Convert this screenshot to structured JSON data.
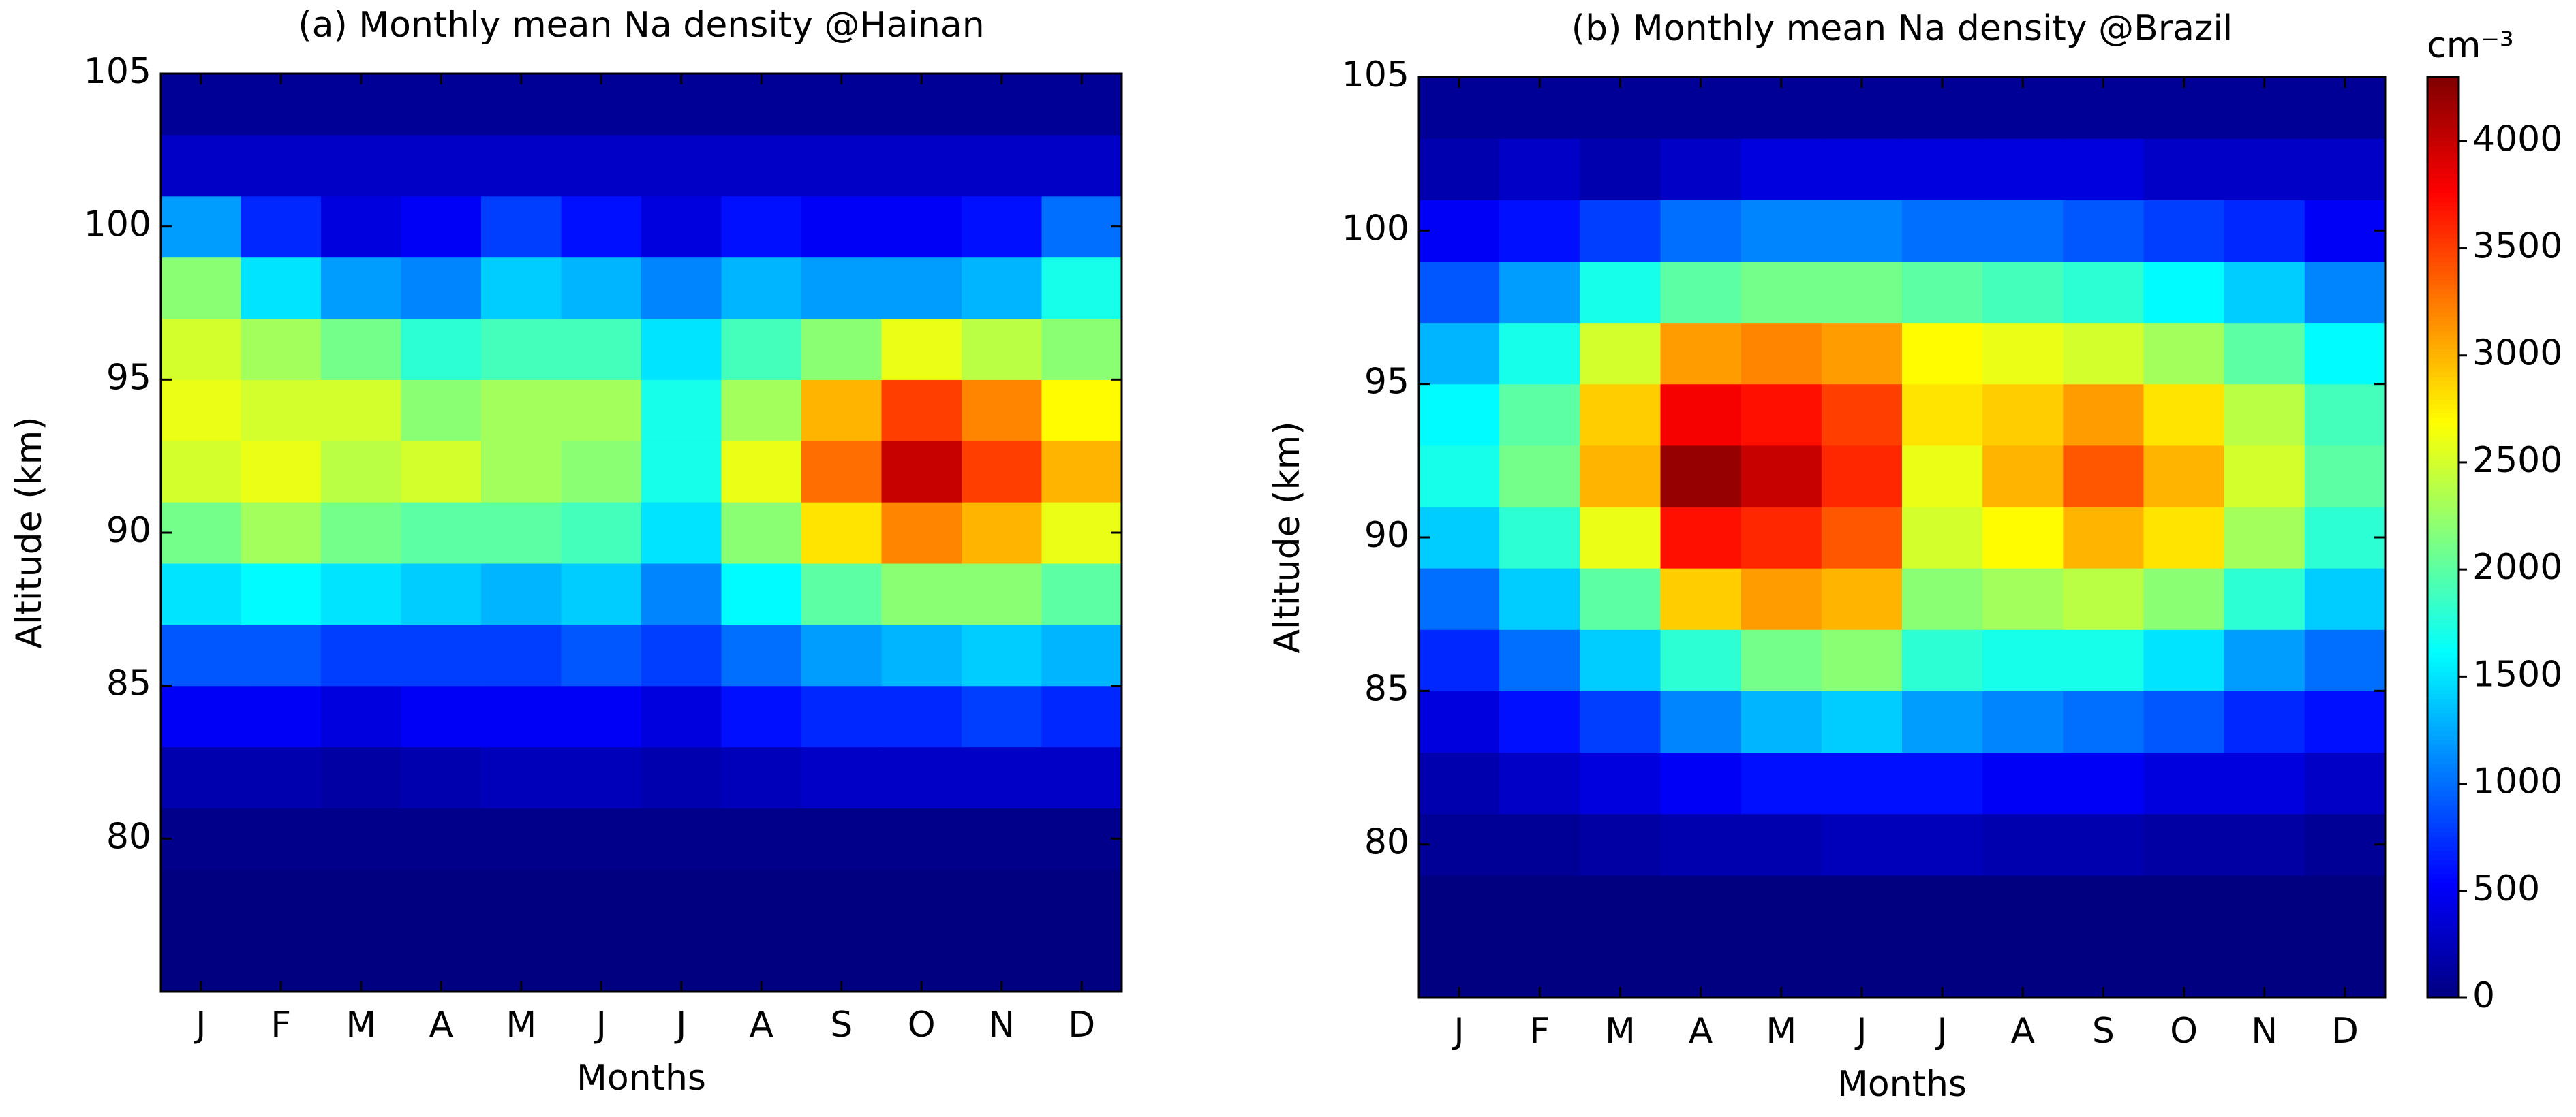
{
  "chart_data": [
    {
      "type": "contour",
      "title": "(a) Monthly mean Na density @Hainan",
      "xlabel": "Months",
      "ylabel": "Altitude (km)",
      "categories": [
        "J",
        "F",
        "M",
        "A",
        "M",
        "J",
        "J",
        "A",
        "S",
        "O",
        "N",
        "D"
      ],
      "ylim": [
        75,
        105
      ],
      "yticks": [
        80,
        85,
        90,
        95,
        100,
        105
      ],
      "colormap": "jet",
      "altitudes": [
        76,
        78,
        80,
        82,
        84,
        86,
        88,
        90,
        92,
        94,
        96,
        98,
        100,
        102,
        104
      ],
      "z": [
        [
          0,
          0,
          0,
          0,
          0,
          0,
          0,
          0,
          0,
          0,
          0,
          0
        ],
        [
          0,
          0,
          0,
          0,
          0,
          0,
          0,
          0,
          0,
          0,
          0,
          0
        ],
        [
          50,
          50,
          50,
          50,
          50,
          50,
          50,
          50,
          50,
          50,
          50,
          50
        ],
        [
          200,
          200,
          150,
          200,
          250,
          250,
          200,
          250,
          300,
          300,
          300,
          300
        ],
        [
          500,
          500,
          400,
          500,
          500,
          500,
          400,
          600,
          700,
          700,
          800,
          700
        ],
        [
          900,
          900,
          800,
          800,
          800,
          900,
          800,
          1000,
          1200,
          1300,
          1400,
          1300
        ],
        [
          1500,
          1600,
          1500,
          1400,
          1300,
          1400,
          1100,
          1600,
          2000,
          2200,
          2200,
          2000
        ],
        [
          2100,
          2300,
          2100,
          2000,
          2000,
          1900,
          1500,
          2200,
          2800,
          3200,
          3000,
          2600
        ],
        [
          2500,
          2600,
          2400,
          2500,
          2300,
          2200,
          1700,
          2600,
          3300,
          4000,
          3500,
          3000
        ],
        [
          2600,
          2500,
          2500,
          2200,
          2300,
          2300,
          1700,
          2300,
          3000,
          3500,
          3200,
          2700
        ],
        [
          2500,
          2300,
          2100,
          1800,
          1900,
          1900,
          1500,
          1900,
          2200,
          2600,
          2400,
          2200
        ],
        [
          2200,
          1500,
          1200,
          1100,
          1400,
          1300,
          1100,
          1300,
          1200,
          1200,
          1300,
          1700
        ],
        [
          1200,
          700,
          400,
          500,
          800,
          600,
          400,
          600,
          500,
          500,
          600,
          1000
        ],
        [
          300,
          300,
          300,
          300,
          300,
          300,
          300,
          300,
          300,
          300,
          300,
          300
        ],
        [
          100,
          100,
          100,
          100,
          100,
          100,
          100,
          100,
          100,
          100,
          100,
          100
        ]
      ]
    },
    {
      "type": "contour",
      "title": "(b) Monthly mean Na density @Brazil",
      "xlabel": "Months",
      "ylabel": "Altitude (km)",
      "categories": [
        "J",
        "F",
        "M",
        "A",
        "M",
        "J",
        "J",
        "A",
        "S",
        "O",
        "N",
        "D"
      ],
      "ylim": [
        75,
        105
      ],
      "yticks": [
        80,
        85,
        90,
        95,
        100,
        105
      ],
      "colormap": "jet",
      "altitudes": [
        76,
        78,
        80,
        82,
        84,
        86,
        88,
        90,
        92,
        94,
        96,
        98,
        100,
        102,
        104
      ],
      "z": [
        [
          0,
          0,
          0,
          0,
          0,
          0,
          0,
          0,
          0,
          0,
          0,
          0
        ],
        [
          0,
          0,
          0,
          0,
          0,
          0,
          0,
          0,
          0,
          0,
          0,
          0
        ],
        [
          100,
          100,
          150,
          200,
          200,
          250,
          250,
          200,
          200,
          150,
          150,
          100
        ],
        [
          200,
          300,
          400,
          500,
          600,
          600,
          600,
          500,
          500,
          400,
          400,
          300
        ],
        [
          400,
          600,
          800,
          1100,
          1300,
          1400,
          1200,
          1100,
          1000,
          900,
          700,
          600
        ],
        [
          700,
          1000,
          1400,
          1800,
          2100,
          2200,
          1800,
          1700,
          1700,
          1500,
          1200,
          1000
        ],
        [
          1000,
          1400,
          2000,
          2900,
          3100,
          3000,
          2200,
          2300,
          2400,
          2200,
          1800,
          1400
        ],
        [
          1400,
          1800,
          2600,
          3700,
          3600,
          3400,
          2500,
          2700,
          3000,
          2800,
          2300,
          1800
        ],
        [
          1700,
          2100,
          3000,
          4200,
          4000,
          3600,
          2600,
          3000,
          3400,
          3000,
          2500,
          2000
        ],
        [
          1600,
          2000,
          2900,
          3800,
          3700,
          3500,
          2800,
          2900,
          3100,
          2800,
          2400,
          1900
        ],
        [
          1300,
          1700,
          2500,
          3100,
          3200,
          3100,
          2700,
          2600,
          2500,
          2300,
          2000,
          1600
        ],
        [
          900,
          1200,
          1700,
          2000,
          2100,
          2100,
          2000,
          1900,
          1800,
          1600,
          1400,
          1100
        ],
        [
          500,
          600,
          800,
          1000,
          1100,
          1100,
          1000,
          1000,
          900,
          800,
          700,
          500
        ],
        [
          200,
          300,
          200,
          300,
          400,
          400,
          400,
          400,
          400,
          300,
          300,
          300
        ],
        [
          100,
          100,
          100,
          100,
          100,
          100,
          100,
          100,
          100,
          100,
          100,
          100
        ]
      ],
      "colorbar": {
        "label": "cm⁻³",
        "clim": [
          0,
          4300
        ],
        "ticks": [
          0,
          500,
          1000,
          1500,
          2000,
          2500,
          3000,
          3500,
          4000
        ]
      }
    }
  ]
}
